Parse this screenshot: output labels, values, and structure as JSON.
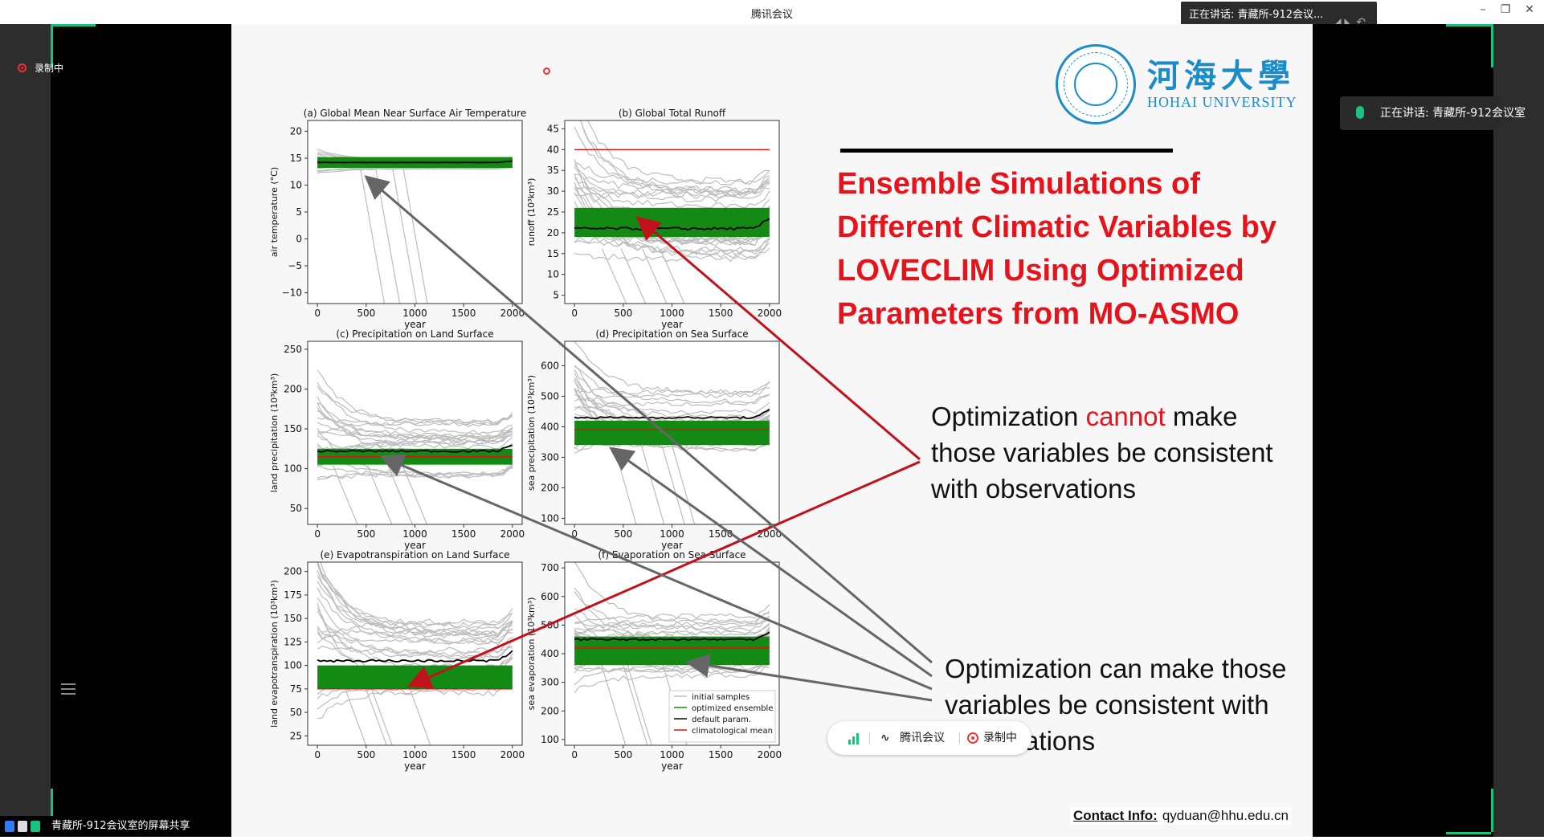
{
  "window": {
    "title": "腾讯会议",
    "speaking_top": "正在讲话: 青藏所-912会议...",
    "minimize": "–",
    "restore": "❐",
    "close": "✕"
  },
  "meeting": {
    "recording_label": "录制中",
    "speaking_right": "正在讲话: 青藏所-912会议室",
    "share_label": "青藏所-912会议室的屏幕共享",
    "toolbar": {
      "app_label": "腾讯会议",
      "recording_label": "录制中"
    },
    "accent_color": "#19c37d"
  },
  "slide": {
    "logo_cn": "河海大學",
    "logo_en": "HOHAI UNIVERSITY",
    "title_lines": [
      "Ensemble Simulations of",
      "Different Climatic Variables by",
      "LOVECLIM Using Optimized",
      "Parameters from MO-ASMO"
    ],
    "note1": {
      "pre": "Optimization ",
      "red": "cannot",
      "post": " make",
      "line2": "those variables be consistent",
      "line3": "with observations"
    },
    "note2": {
      "line1": "Optimization can make those",
      "line2": "variables be consistent with",
      "line3": "observations"
    },
    "contact_label": "Contact Info:",
    "contact_value": "qyduan@hhu.edu.cn",
    "title_color": "#e8121b"
  },
  "chart_data": [
    {
      "type": "line",
      "title": "(a) Global Mean Near Surface Air Temperature",
      "xlabel": "year",
      "ylabel": "air temperature (°C)",
      "xlim": [
        -100,
        2100
      ],
      "ylim": [
        -12,
        22
      ],
      "x_ticks": [
        0,
        500,
        1000,
        1500,
        2000
      ],
      "y_ticks": [
        -10,
        -5,
        0,
        5,
        10,
        15,
        20
      ],
      "y_tick_labels": [
        "−10",
        "−5",
        "0",
        "5",
        "10",
        "15",
        "20"
      ],
      "ensemble_band": [
        13,
        15
      ],
      "optimized_band": [
        13.2,
        15.2
      ],
      "default_param": 14.2,
      "climatological_mean": null
    },
    {
      "type": "line",
      "title": "(b) Global Total Runoff",
      "xlabel": "year",
      "ylabel": "runoff (10³km³)",
      "xlim": [
        -100,
        2100
      ],
      "ylim": [
        3,
        47
      ],
      "x_ticks": [
        0,
        500,
        1000,
        1500,
        2000
      ],
      "y_ticks": [
        5,
        10,
        15,
        20,
        25,
        30,
        35,
        40,
        45
      ],
      "y_tick_labels": [
        "5",
        "10",
        "15",
        "20",
        "25",
        "30",
        "35",
        "40",
        "45"
      ],
      "ensemble_band": [
        12,
        33
      ],
      "optimized_band": [
        19,
        26
      ],
      "default_param": 21,
      "climatological_mean": 40
    },
    {
      "type": "line",
      "title": "(c) Precipitation on Land Surface",
      "xlabel": "year",
      "ylabel": "land precipitation (10³km³)",
      "xlim": [
        -100,
        2100
      ],
      "ylim": [
        30,
        260
      ],
      "x_ticks": [
        0,
        500,
        1000,
        1500,
        2000
      ],
      "y_ticks": [
        50,
        100,
        150,
        200,
        250
      ],
      "y_tick_labels": [
        "50",
        "100",
        "150",
        "200",
        "250"
      ],
      "ensemble_band": [
        90,
        160
      ],
      "optimized_band": [
        105,
        125
      ],
      "default_param": 122,
      "climatological_mean": 115
    },
    {
      "type": "line",
      "title": "(d) Precipitation on Sea Surface",
      "xlabel": "year",
      "ylabel": "sea precipitation (10³km³)",
      "xlim": [
        -100,
        2100
      ],
      "ylim": [
        80,
        680
      ],
      "x_ticks": [
        0,
        500,
        1000,
        1500,
        2000
      ],
      "y_ticks": [
        100,
        200,
        300,
        400,
        500,
        600
      ],
      "y_tick_labels": [
        "100",
        "200",
        "300",
        "400",
        "500",
        "600"
      ],
      "ensemble_band": [
        320,
        520
      ],
      "optimized_band": [
        340,
        420
      ],
      "default_param": 430,
      "climatological_mean": 390
    },
    {
      "type": "line",
      "title": "(e) Evapotranspiration on Land Surface",
      "xlabel": "year",
      "ylabel": "land evapotranspiration (10³km³)",
      "xlim": [
        -100,
        2100
      ],
      "ylim": [
        15,
        210
      ],
      "x_ticks": [
        0,
        500,
        1000,
        1500,
        2000
      ],
      "y_ticks": [
        25,
        50,
        75,
        100,
        125,
        150,
        175,
        200
      ],
      "y_tick_labels": [
        "25",
        "50",
        "75",
        "100",
        "125",
        "150",
        "175",
        "200"
      ],
      "ensemble_band": [
        70,
        150
      ],
      "optimized_band": [
        75,
        100
      ],
      "default_param": 105,
      "climatological_mean": 75
    },
    {
      "type": "line",
      "title": "(f) Evaporation on Sea Surface",
      "xlabel": "year",
      "ylabel": "sea evaporation (10³km³)",
      "xlim": [
        -100,
        2100
      ],
      "ylim": [
        80,
        720
      ],
      "x_ticks": [
        0,
        500,
        1000,
        1500,
        2000
      ],
      "y_ticks": [
        100,
        200,
        300,
        400,
        500,
        600,
        700
      ],
      "y_tick_labels": [
        "100",
        "200",
        "300",
        "400",
        "500",
        "600",
        "700"
      ],
      "ensemble_band": [
        320,
        540
      ],
      "optimized_band": [
        360,
        460
      ],
      "default_param": 450,
      "climatological_mean": 420,
      "legend": [
        "initial samples",
        "optimized ensemble",
        "default param.",
        "climatological mean"
      ],
      "legend_placement": "lower-right"
    }
  ],
  "series_colors": {
    "initial samples": "#bdbdbd",
    "optimized ensemble": "#138a13",
    "default param.": "#000000",
    "climatological mean": "#dd1111"
  },
  "arrow_colors": {
    "cannot": "#c0121b",
    "can": "#666666"
  }
}
